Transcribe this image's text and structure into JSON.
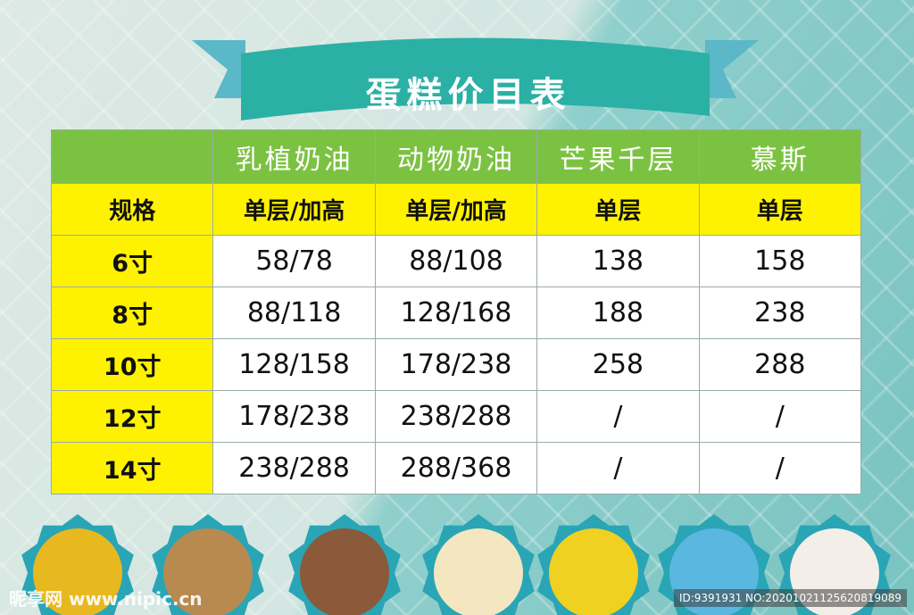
{
  "title": "蛋糕价目表",
  "colors": {
    "header_green": "#7cc242",
    "yellow": "#fff200",
    "ribbon": "#2bb0a5",
    "ribbon_ends": "#5ab8c8"
  },
  "table": {
    "columns": [
      "",
      "乳植奶油",
      "动物奶油",
      "芒果千层",
      "慕斯"
    ],
    "subheader": [
      "规格",
      "单层/加高",
      "单层/加高",
      "单层",
      "单层"
    ],
    "rows": [
      [
        "6寸",
        "58/78",
        "88/108",
        "138",
        "158"
      ],
      [
        "8寸",
        "88/118",
        "128/168",
        "188",
        "238"
      ],
      [
        "10寸",
        "128/158",
        "178/238",
        "258",
        "288"
      ],
      [
        "12寸",
        "178/238",
        "238/288",
        "/",
        "/"
      ],
      [
        "14寸",
        "238/288",
        "288/368",
        "/",
        "/"
      ]
    ]
  },
  "cakes": [
    "heart-fruit-cake",
    "tiered-cake",
    "chocolate-drip-cake",
    "fruit-slice-cake",
    "car-cake",
    "doraemon-cake",
    "strawberry-cake"
  ],
  "watermark": {
    "logo": "昵享网 www.nipic.cn",
    "id": "ID:9391931 NO:20201021125620819089"
  }
}
